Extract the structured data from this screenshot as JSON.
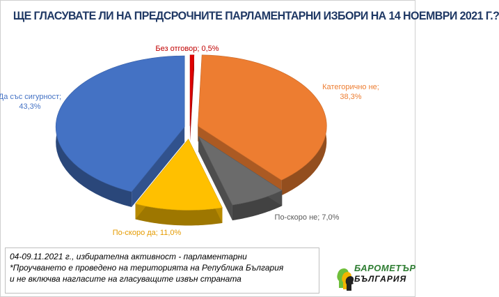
{
  "title": "ЩЕ ГЛАСУВАТЕ ЛИ НА ПРЕДСРОЧНИТЕ ПАРЛАМЕНТАРНИ ИЗБОРИ НА 14 НОЕМВРИ 2021 Г.?",
  "chart_data": {
    "type": "pie",
    "title": "ЩЕ ГЛАСУВАТЕ ЛИ НА ПРЕДСРОЧНИТЕ ПАРЛАМЕНТАРНИ ИЗБОРИ НА 14 НОЕМВРИ 2021 Г.?",
    "slices": [
      {
        "name": "Без отговор",
        "value": 0.5,
        "label": "Без отговор; 0,5%",
        "color": "#e00000"
      },
      {
        "name": "Категорично не",
        "value": 38.3,
        "label_name": "Категорично  не;",
        "label_value": "38,3%",
        "color": "#ed7d31"
      },
      {
        "name": "По-скоро не",
        "value": 7.0,
        "label": "По-скоро  не; 7,0%",
        "color": "#6b6b6b"
      },
      {
        "name": "По-скоро да",
        "value": 11.0,
        "label": "По-скоро  да; 11,0%",
        "color": "#ffc000"
      },
      {
        "name": "Да със сигурност",
        "value": 43.3,
        "label_name": "Да със сигурност;",
        "label_value": "43,3%",
        "color": "#4472c4"
      }
    ]
  },
  "footnote": {
    "line1": "04-09.11.2021  г., избирателна активност - парламентарни",
    "line2": "*Проучването е проведено на територията на Република България",
    "line3": " и не включва нагласите на гласуващите извън страната"
  },
  "logo": {
    "line1": "БАРОМЕТЪР",
    "line2": "БЪЛГАРИЯ"
  }
}
